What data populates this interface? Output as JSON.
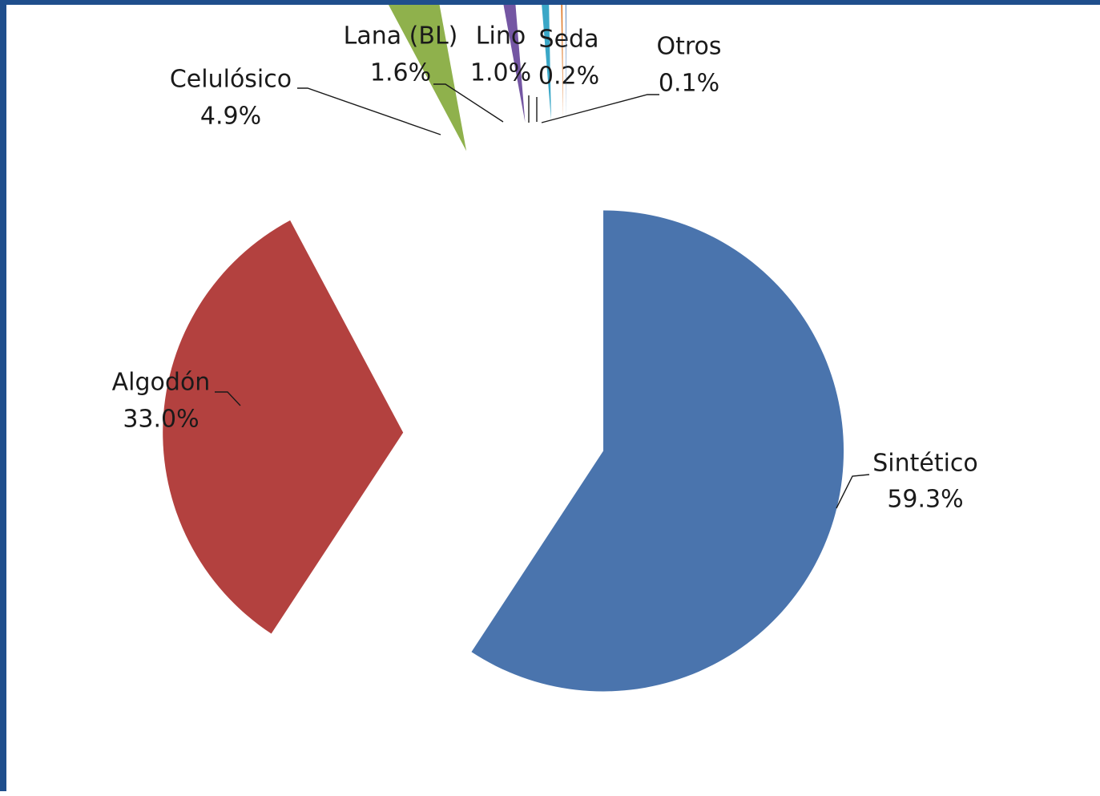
{
  "chart_data": {
    "type": "pie",
    "title": "",
    "colors": {
      "Sintético": "#4a74ad",
      "Algodón": "#b3413f",
      "Celulósico": "#8fb14c",
      "Lana (BL)": "#7456a3",
      "Lino": "#3aa7c7",
      "Seda": "#e07b2c",
      "Otros": "#3b6fb0"
    },
    "slices": [
      {
        "name": "Sintético",
        "value": 59.3,
        "label": "59.3%"
      },
      {
        "name": "Algodón",
        "value": 33.0,
        "label": "33.0%"
      },
      {
        "name": "Celulósico",
        "value": 4.9,
        "label": "4.9%"
      },
      {
        "name": "Lana (BL)",
        "value": 1.6,
        "label": "1.6%"
      },
      {
        "name": "Lino",
        "value": 1.0,
        "label": "1.0%"
      },
      {
        "name": "Seda",
        "value": 0.2,
        "label": "0.2%"
      },
      {
        "name": "Otros",
        "value": 0.1,
        "label": "0.1%"
      }
    ],
    "exploded": true,
    "legend": "none"
  }
}
